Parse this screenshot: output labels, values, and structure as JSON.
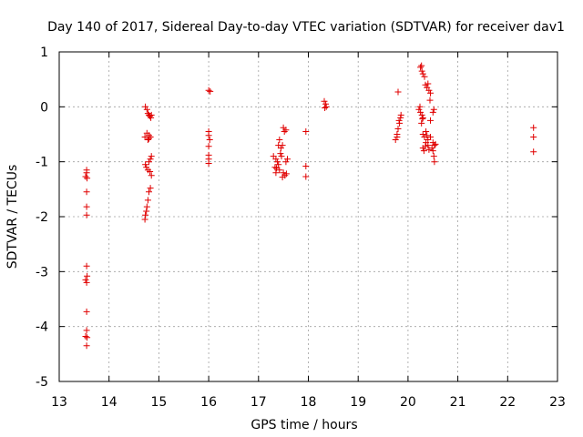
{
  "chart_data": {
    "type": "scatter",
    "title": "Day 140 of 2017, Sidereal Day-to-day VTEC variation (SDTVAR) for receiver dav1",
    "xlabel": "GPS time / hours",
    "ylabel": "SDTVAR / TECUs",
    "xlim": [
      13,
      23
    ],
    "ylim": [
      -5,
      1
    ],
    "xticks": [
      13,
      14,
      15,
      16,
      17,
      18,
      19,
      20,
      21,
      22,
      23
    ],
    "yticks": [
      1,
      0,
      -1,
      -2,
      -3,
      -4,
      -5
    ],
    "xtick_labels": [
      "13",
      "14",
      "15",
      "16",
      "17",
      "18",
      "19",
      "20",
      "21",
      "22",
      "23"
    ],
    "ytick_labels": [
      "1",
      "0",
      "-1",
      "-2",
      "-3",
      "-4",
      "-5"
    ],
    "grid": true,
    "marker": "+",
    "color": "#e00000",
    "series": [
      {
        "name": "dav1",
        "points": [
          [
            13.55,
            -1.15
          ],
          [
            13.55,
            -1.2
          ],
          [
            13.53,
            -1.27
          ],
          [
            13.56,
            -1.3
          ],
          [
            13.55,
            -1.55
          ],
          [
            13.55,
            -1.82
          ],
          [
            13.55,
            -1.97
          ],
          [
            13.55,
            -2.9
          ],
          [
            13.56,
            -3.08
          ],
          [
            13.53,
            -3.15
          ],
          [
            13.55,
            -3.2
          ],
          [
            13.55,
            -3.73
          ],
          [
            13.55,
            -4.07
          ],
          [
            13.53,
            -4.18
          ],
          [
            13.56,
            -4.2
          ],
          [
            13.55,
            -4.35
          ],
          [
            14.73,
            0.0
          ],
          [
            14.76,
            -0.05
          ],
          [
            14.78,
            -0.12
          ],
          [
            14.8,
            -0.15
          ],
          [
            14.82,
            -0.17
          ],
          [
            14.85,
            -0.15
          ],
          [
            14.84,
            -0.2
          ],
          [
            14.76,
            -0.48
          ],
          [
            14.8,
            -0.52
          ],
          [
            14.83,
            -0.55
          ],
          [
            14.72,
            -0.55
          ],
          [
            14.78,
            -0.6
          ],
          [
            14.8,
            -0.58
          ],
          [
            14.85,
            -0.9
          ],
          [
            14.83,
            -0.95
          ],
          [
            14.8,
            -1.0
          ],
          [
            14.73,
            -1.05
          ],
          [
            14.75,
            -1.1
          ],
          [
            14.78,
            -1.15
          ],
          [
            14.82,
            -1.18
          ],
          [
            14.85,
            -1.25
          ],
          [
            14.83,
            -1.48
          ],
          [
            14.8,
            -1.55
          ],
          [
            14.78,
            -1.7
          ],
          [
            14.76,
            -1.82
          ],
          [
            14.75,
            -1.9
          ],
          [
            14.73,
            -1.97
          ],
          [
            14.72,
            -2.05
          ],
          [
            16.0,
            0.3
          ],
          [
            16.03,
            0.28
          ],
          [
            16.0,
            -0.45
          ],
          [
            16.0,
            -0.52
          ],
          [
            16.02,
            -0.6
          ],
          [
            16.0,
            -0.72
          ],
          [
            16.0,
            -0.88
          ],
          [
            16.0,
            -0.95
          ],
          [
            16.0,
            -1.03
          ],
          [
            17.3,
            -0.9
          ],
          [
            17.35,
            -0.95
          ],
          [
            17.38,
            -1.0
          ],
          [
            17.33,
            -1.1
          ],
          [
            17.4,
            -1.05
          ],
          [
            17.42,
            -1.15
          ],
          [
            17.36,
            -1.12
          ],
          [
            17.45,
            -0.75
          ],
          [
            17.48,
            -0.7
          ],
          [
            17.44,
            -0.85
          ],
          [
            17.46,
            -0.9
          ],
          [
            17.5,
            -0.38
          ],
          [
            17.52,
            -0.45
          ],
          [
            17.55,
            -0.42
          ],
          [
            17.5,
            -1.2
          ],
          [
            17.53,
            -1.25
          ],
          [
            17.48,
            -1.28
          ],
          [
            17.56,
            -1.22
          ],
          [
            17.58,
            -0.95
          ],
          [
            17.55,
            -1.0
          ],
          [
            17.42,
            -0.6
          ],
          [
            17.4,
            -0.7
          ],
          [
            17.35,
            -1.2
          ],
          [
            17.95,
            -0.45
          ],
          [
            17.95,
            -1.08
          ],
          [
            17.95,
            -1.27
          ],
          [
            18.32,
            0.1
          ],
          [
            18.35,
            0.05
          ],
          [
            18.33,
            -0.02
          ],
          [
            18.36,
            0.0
          ],
          [
            19.75,
            -0.6
          ],
          [
            19.78,
            -0.5
          ],
          [
            19.8,
            -0.4
          ],
          [
            19.83,
            -0.3
          ],
          [
            19.85,
            -0.2
          ],
          [
            19.82,
            -0.25
          ],
          [
            19.86,
            -0.15
          ],
          [
            19.78,
            -0.55
          ],
          [
            19.8,
            0.27
          ],
          [
            20.25,
            0.72
          ],
          [
            20.27,
            0.75
          ],
          [
            20.28,
            0.65
          ],
          [
            20.3,
            0.6
          ],
          [
            20.33,
            0.55
          ],
          [
            20.35,
            0.4
          ],
          [
            20.38,
            0.35
          ],
          [
            20.4,
            0.42
          ],
          [
            20.42,
            0.3
          ],
          [
            20.45,
            0.25
          ],
          [
            20.25,
            -0.1
          ],
          [
            20.28,
            -0.15
          ],
          [
            20.3,
            -0.2
          ],
          [
            20.22,
            -0.05
          ],
          [
            20.24,
            0.0
          ],
          [
            20.3,
            -0.5
          ],
          [
            20.33,
            -0.55
          ],
          [
            20.36,
            -0.45
          ],
          [
            20.38,
            -0.52
          ],
          [
            20.4,
            -0.6
          ],
          [
            20.3,
            -0.75
          ],
          [
            20.32,
            -0.8
          ],
          [
            20.35,
            -0.72
          ],
          [
            20.4,
            -0.7
          ],
          [
            20.45,
            -0.25
          ],
          [
            20.5,
            -0.1
          ],
          [
            20.52,
            -0.05
          ],
          [
            20.5,
            -0.65
          ],
          [
            20.53,
            -0.7
          ],
          [
            20.55,
            -0.68
          ],
          [
            20.5,
            -0.8
          ],
          [
            20.52,
            -0.9
          ],
          [
            20.53,
            -1.0
          ],
          [
            20.45,
            -0.55
          ],
          [
            20.42,
            -0.78
          ],
          [
            20.27,
            -0.3
          ],
          [
            20.29,
            -0.22
          ],
          [
            20.48,
            -0.75
          ],
          [
            20.36,
            -0.65
          ],
          [
            20.44,
            0.12
          ],
          [
            22.52,
            -0.38
          ],
          [
            22.52,
            -0.55
          ],
          [
            22.52,
            -0.82
          ]
        ]
      }
    ]
  }
}
